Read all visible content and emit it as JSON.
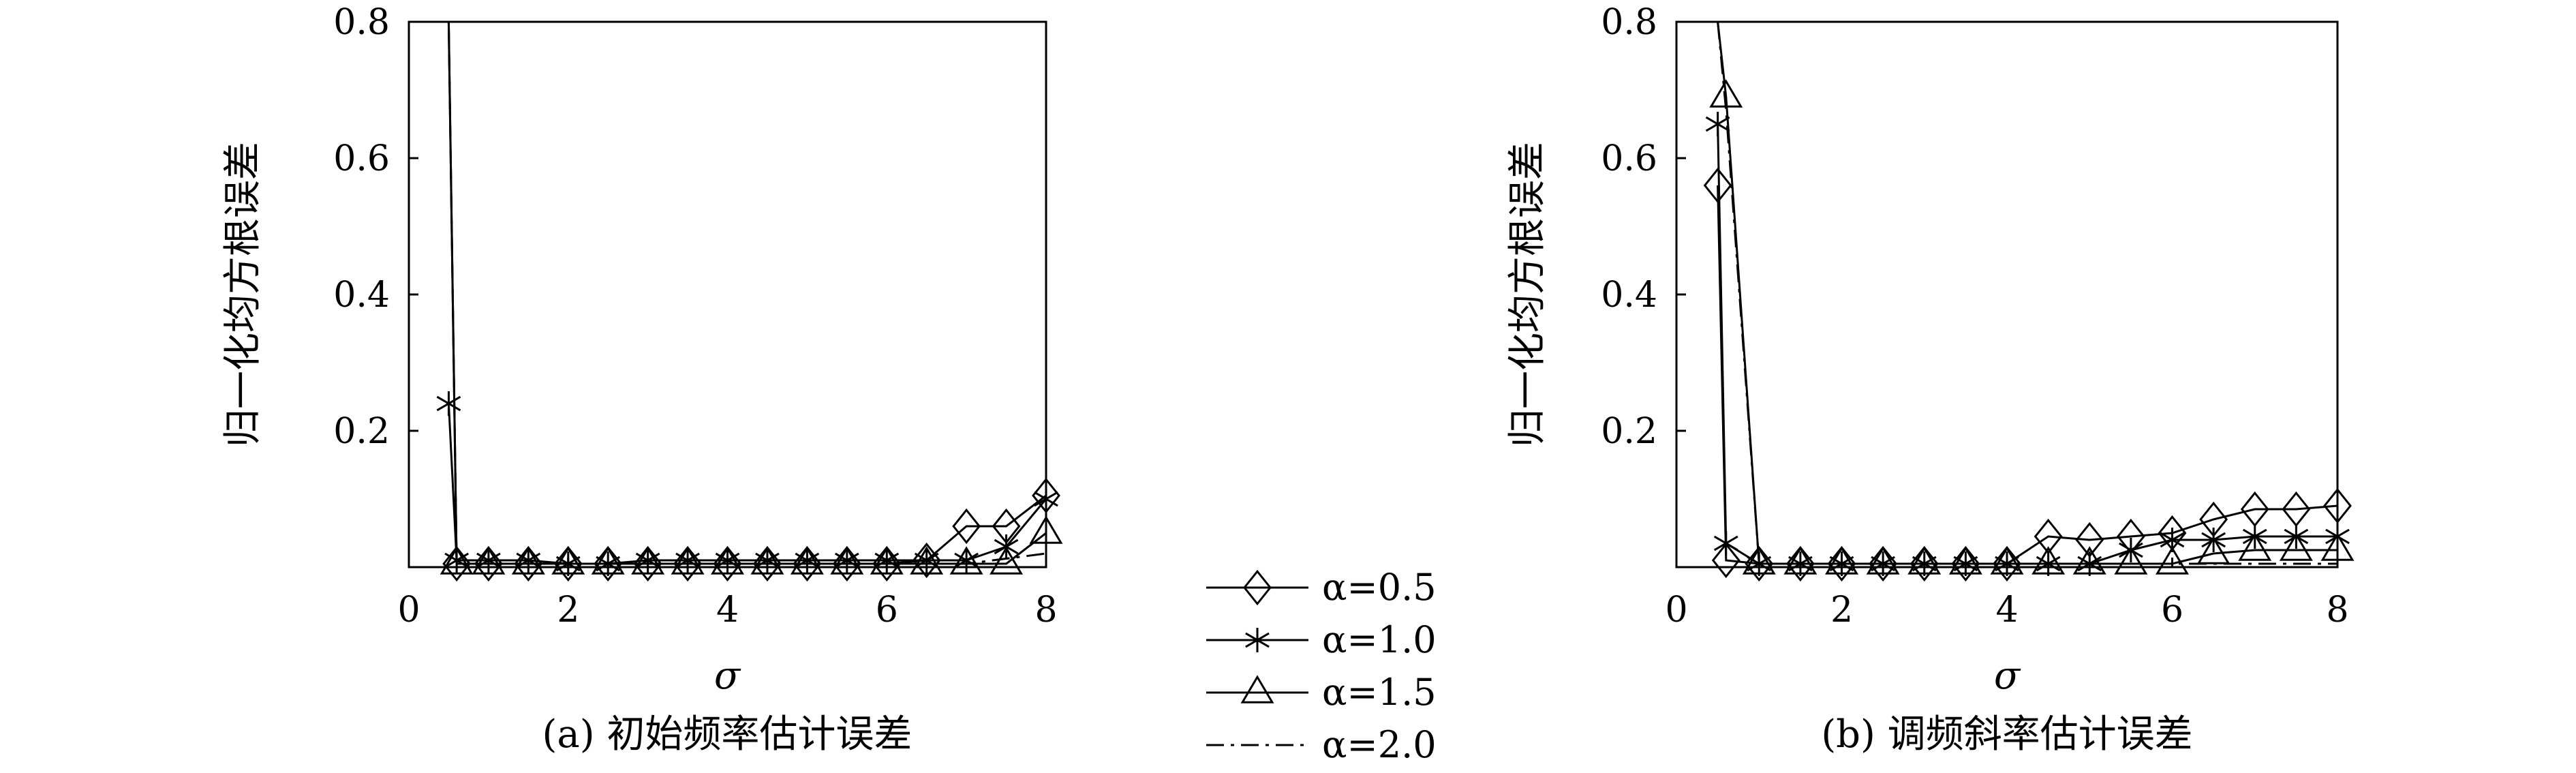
{
  "charts": [
    {
      "type": "line",
      "caption": "(a) 初始频率估计误差",
      "xlabel": "σ",
      "ylabel": "归一化均方根误差",
      "x_ticks": [
        "0",
        "2",
        "4",
        "6",
        "8"
      ],
      "y_ticks": [
        "0.2",
        "0.4",
        "0.6",
        "0.8"
      ],
      "xlim": [
        0,
        8
      ],
      "ylim": [
        0,
        0.8
      ],
      "series": [
        {
          "name": "α=0.5",
          "marker": "diamond",
          "dash": "solid",
          "x": [
            0.5,
            0.6,
            1,
            1.5,
            2,
            2.5,
            3,
            3.5,
            4,
            4.5,
            5,
            5.5,
            6,
            6.5,
            7,
            7.5,
            8
          ],
          "y": [
            0.8,
            0.005,
            0.005,
            0.005,
            0.005,
            0.005,
            0.005,
            0.005,
            0.005,
            0.005,
            0.005,
            0.005,
            0.005,
            0.01,
            0.06,
            0.06,
            0.105
          ]
        },
        {
          "name": "α=1.0",
          "marker": "star",
          "dash": "solid",
          "x": [
            0.5,
            0.6,
            1,
            1.5,
            2,
            2.5,
            3,
            3.5,
            4,
            4.5,
            5,
            5.5,
            6,
            6.5,
            7,
            7.5,
            8
          ],
          "y": [
            0.24,
            0.01,
            0.01,
            0.01,
            0.005,
            0.005,
            0.01,
            0.01,
            0.01,
            0.01,
            0.01,
            0.01,
            0.01,
            0.01,
            0.01,
            0.03,
            0.1
          ]
        },
        {
          "name": "α=1.5",
          "marker": "triangle",
          "dash": "solid",
          "x": [
            0.5,
            0.6,
            1,
            1.5,
            2,
            2.5,
            3,
            3.5,
            4,
            4.5,
            5,
            5.5,
            6,
            6.5,
            7,
            7.5,
            8
          ],
          "y": [
            0.8,
            0.005,
            0.005,
            0.005,
            0.005,
            0.005,
            0.005,
            0.005,
            0.005,
            0.005,
            0.005,
            0.005,
            0.005,
            0.005,
            0.005,
            0.005,
            0.05
          ]
        },
        {
          "name": "α=2.0",
          "marker": "none",
          "dash": "dashdot",
          "x": [
            0.5,
            0.6,
            1,
            2,
            3,
            4,
            5,
            6,
            7,
            8
          ],
          "y": [
            0.8,
            0.005,
            0.005,
            0.005,
            0.005,
            0.005,
            0.005,
            0.005,
            0.005,
            0.02
          ]
        }
      ]
    },
    {
      "type": "line",
      "caption": "(b) 调频斜率估计误差",
      "xlabel": "σ",
      "ylabel": "归一化均方根误差",
      "x_ticks": [
        "0",
        "2",
        "4",
        "6",
        "8"
      ],
      "y_ticks": [
        "0.2",
        "0.4",
        "0.6",
        "0.8"
      ],
      "xlim": [
        0,
        8
      ],
      "ylim": [
        0,
        0.8
      ],
      "series": [
        {
          "name": "α=0.5",
          "marker": "diamond",
          "dash": "solid",
          "x": [
            0.5,
            0.6,
            1,
            1.5,
            2,
            2.5,
            3,
            3.5,
            4,
            4.5,
            5,
            5.5,
            6,
            6.5,
            7,
            7.5,
            8
          ],
          "y": [
            0.56,
            0.01,
            0.005,
            0.005,
            0.005,
            0.005,
            0.005,
            0.005,
            0.005,
            0.045,
            0.04,
            0.045,
            0.05,
            0.07,
            0.085,
            0.085,
            0.09
          ]
        },
        {
          "name": "α=1.0",
          "marker": "star",
          "dash": "solid",
          "x": [
            0.5,
            0.6,
            1,
            1.5,
            2,
            2.5,
            3,
            3.5,
            4,
            4.5,
            5,
            5.5,
            6,
            6.5,
            7,
            7.5,
            8
          ],
          "y": [
            0.65,
            0.035,
            0.005,
            0.005,
            0.005,
            0.005,
            0.005,
            0.005,
            0.005,
            0.005,
            0.005,
            0.025,
            0.04,
            0.04,
            0.045,
            0.045,
            0.045
          ]
        },
        {
          "name": "α=1.5",
          "marker": "triangle",
          "dash": "solid",
          "x": [
            0.5,
            0.6,
            1,
            1.5,
            2,
            2.5,
            3,
            3.5,
            4,
            4.5,
            5,
            5.5,
            6,
            6.5,
            7,
            7.5,
            8
          ],
          "y": [
            0.8,
            0.69,
            0.005,
            0.005,
            0.005,
            0.005,
            0.005,
            0.005,
            0.005,
            0.005,
            0.005,
            0.005,
            0.005,
            0.02,
            0.025,
            0.025,
            0.025
          ]
        },
        {
          "name": "α=2.0",
          "marker": "none",
          "dash": "dashdot",
          "x": [
            0.5,
            0.6,
            1,
            2,
            3,
            4,
            5,
            6,
            7,
            8
          ],
          "y": [
            0.8,
            0.67,
            0.005,
            0.005,
            0.005,
            0.005,
            0.005,
            0.005,
            0.005,
            0.005
          ]
        }
      ]
    }
  ],
  "legend": [
    {
      "label": "α=0.5",
      "marker": "diamond",
      "dash": "solid"
    },
    {
      "label": "α=1.0",
      "marker": "star",
      "dash": "solid"
    },
    {
      "label": "α=1.5",
      "marker": "triangle",
      "dash": "solid"
    },
    {
      "label": "α=2.0",
      "marker": "none",
      "dash": "dashdot"
    }
  ]
}
